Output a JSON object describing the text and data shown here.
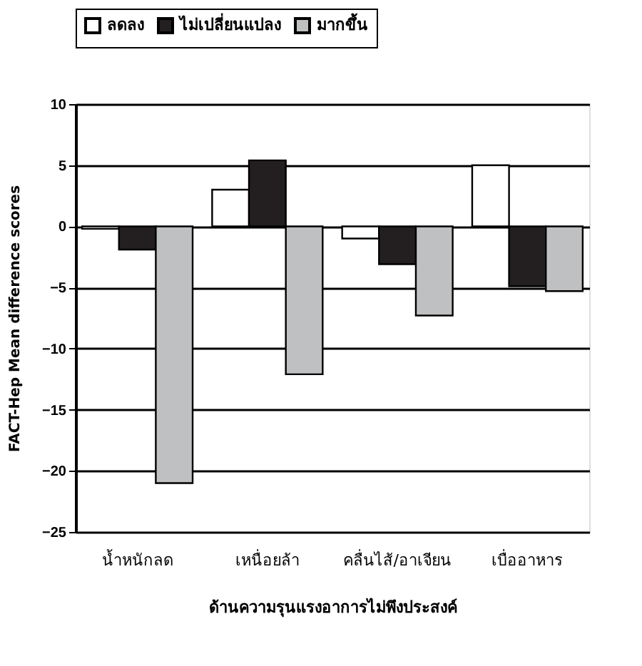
{
  "chart_data": {
    "type": "bar",
    "xlabel": "ด้านความรุนแรงอาการไม่พึงประสงค์",
    "ylabel": "FACT-Hep Mean difference scores",
    "categories": [
      "น้ำหนักลด",
      "เหนื่อยล้า",
      "คลื่นไส้/อาเจียน",
      "เบื่ออาหาร"
    ],
    "series": [
      {
        "name": "ลดลง",
        "color": "#ffffff",
        "values": [
          -0.2,
          3.0,
          -1.0,
          5.0
        ]
      },
      {
        "name": "ไม่เปลี่ยนแปลง",
        "color": "#231f20",
        "values": [
          -1.9,
          5.4,
          -3.1,
          -4.9
        ]
      },
      {
        "name": "มากขึ้น",
        "color": "#bfc0c2",
        "values": [
          -21.0,
          -12.1,
          -7.3,
          -5.3
        ]
      }
    ],
    "ylim": [
      -25,
      10
    ],
    "yticks": [
      -25,
      -20,
      -15,
      -10,
      -5,
      0,
      5,
      10
    ],
    "grid": "y",
    "legend": "top"
  }
}
